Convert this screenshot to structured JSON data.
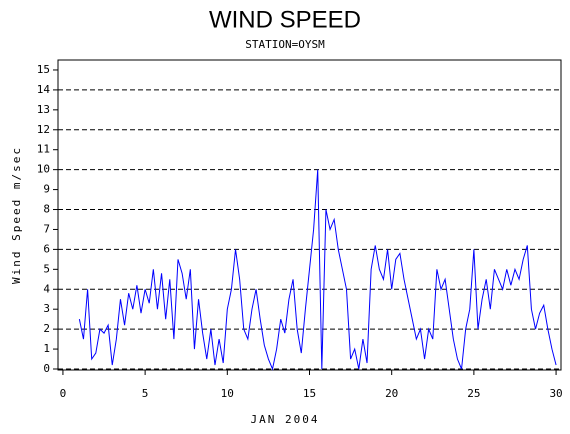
{
  "chart_data": {
    "type": "line",
    "title": "WIND SPEED",
    "subtitle": "STATION=OYSM",
    "x_label": "JAN 2004",
    "y_label": "Wind Speed m/sec",
    "x": [
      1,
      1.25,
      1.5,
      1.75,
      2,
      2.25,
      2.5,
      2.75,
      3,
      3.25,
      3.5,
      3.75,
      4,
      4.25,
      4.5,
      4.75,
      5,
      5.25,
      5.5,
      5.75,
      6,
      6.25,
      6.5,
      6.75,
      7,
      7.25,
      7.5,
      7.75,
      8,
      8.25,
      8.5,
      8.75,
      9,
      9.25,
      9.5,
      9.75,
      10,
      10.25,
      10.5,
      10.75,
      11,
      11.25,
      11.5,
      11.75,
      12,
      12.25,
      12.5,
      12.75,
      13,
      13.25,
      13.5,
      13.75,
      14,
      14.25,
      14.5,
      14.75,
      15,
      15.25,
      15.5,
      15.75,
      16,
      16.25,
      16.5,
      16.75,
      17,
      17.25,
      17.5,
      17.75,
      18,
      18.25,
      18.5,
      18.75,
      19,
      19.25,
      19.5,
      19.75,
      20,
      20.25,
      20.5,
      20.75,
      21,
      21.25,
      21.5,
      21.75,
      22,
      22.25,
      22.5,
      22.75,
      23,
      23.25,
      23.5,
      23.75,
      24,
      24.25,
      24.5,
      24.75,
      25,
      25.25,
      25.5,
      25.75,
      26,
      26.25,
      26.5,
      26.75,
      27,
      27.25,
      27.5,
      27.75,
      28,
      28.25,
      28.5,
      28.75,
      29,
      29.25,
      29.5,
      29.75,
      30
    ],
    "series": [
      {
        "name": "Wind Speed",
        "color": "#0000ff",
        "values": [
          2.5,
          1.5,
          4,
          0.5,
          0.8,
          2,
          1.8,
          2.2,
          0.2,
          1.5,
          3.5,
          2.2,
          3.8,
          3,
          4.2,
          2.8,
          4,
          3.3,
          5,
          3,
          4.8,
          2.5,
          4.5,
          1.5,
          5.5,
          4.8,
          3.5,
          5,
          1,
          3.5,
          1.8,
          0.5,
          2,
          0.2,
          1.5,
          0.3,
          3,
          4,
          6,
          4.5,
          2,
          1.5,
          3,
          4,
          2.5,
          1.2,
          0.5,
          0,
          1,
          2.5,
          1.8,
          3.5,
          4.5,
          2,
          0.8,
          3,
          5,
          7,
          10,
          0,
          8,
          7,
          7.5,
          6,
          5,
          4,
          0.5,
          1,
          0,
          1.5,
          0.3,
          5,
          6.2,
          5,
          4.5,
          6,
          4,
          5.5,
          5.8,
          4.5,
          3.5,
          2.5,
          1.5,
          2,
          0.5,
          2,
          1.5,
          5,
          4,
          4.5,
          3,
          1.5,
          0.5,
          0,
          2,
          3,
          6,
          2,
          3.5,
          4.5,
          3,
          5,
          4.5,
          4,
          5,
          4.2,
          5,
          4.5,
          5.5,
          6.2,
          3,
          2,
          2.8,
          3.2,
          2,
          1,
          0.2
        ]
      }
    ],
    "xlim": [
      -0.3,
      30.3
    ],
    "xticks": [
      0,
      5,
      10,
      15,
      20,
      25,
      30
    ],
    "ylim": [
      -0.05,
      15.5
    ],
    "yticks": [
      0,
      1,
      2,
      3,
      4,
      5,
      6,
      7,
      8,
      9,
      10,
      11,
      12,
      13,
      14,
      15
    ],
    "grid_lines": [
      0,
      2,
      4,
      6,
      8,
      10,
      12,
      14
    ]
  }
}
